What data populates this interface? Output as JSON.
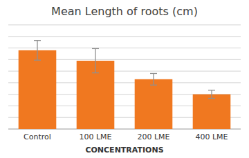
{
  "chart_data": {
    "type": "bar",
    "title": "Mean Length of roots (cm)",
    "xlabel": "CONCENTRATIONS",
    "categories": [
      "Control",
      "100 LME",
      "200 LME",
      "400 LME"
    ],
    "values": [
      6.8,
      5.9,
      4.3,
      3.0
    ],
    "errors": [
      0.85,
      1.05,
      0.5,
      0.35
    ],
    "color": "#F07820",
    "ylim": [
      0,
      9
    ],
    "yticks": [
      1,
      2,
      3,
      4,
      5,
      6,
      7,
      8,
      9
    ],
    "grid": true,
    "tick_labels": "x"
  }
}
